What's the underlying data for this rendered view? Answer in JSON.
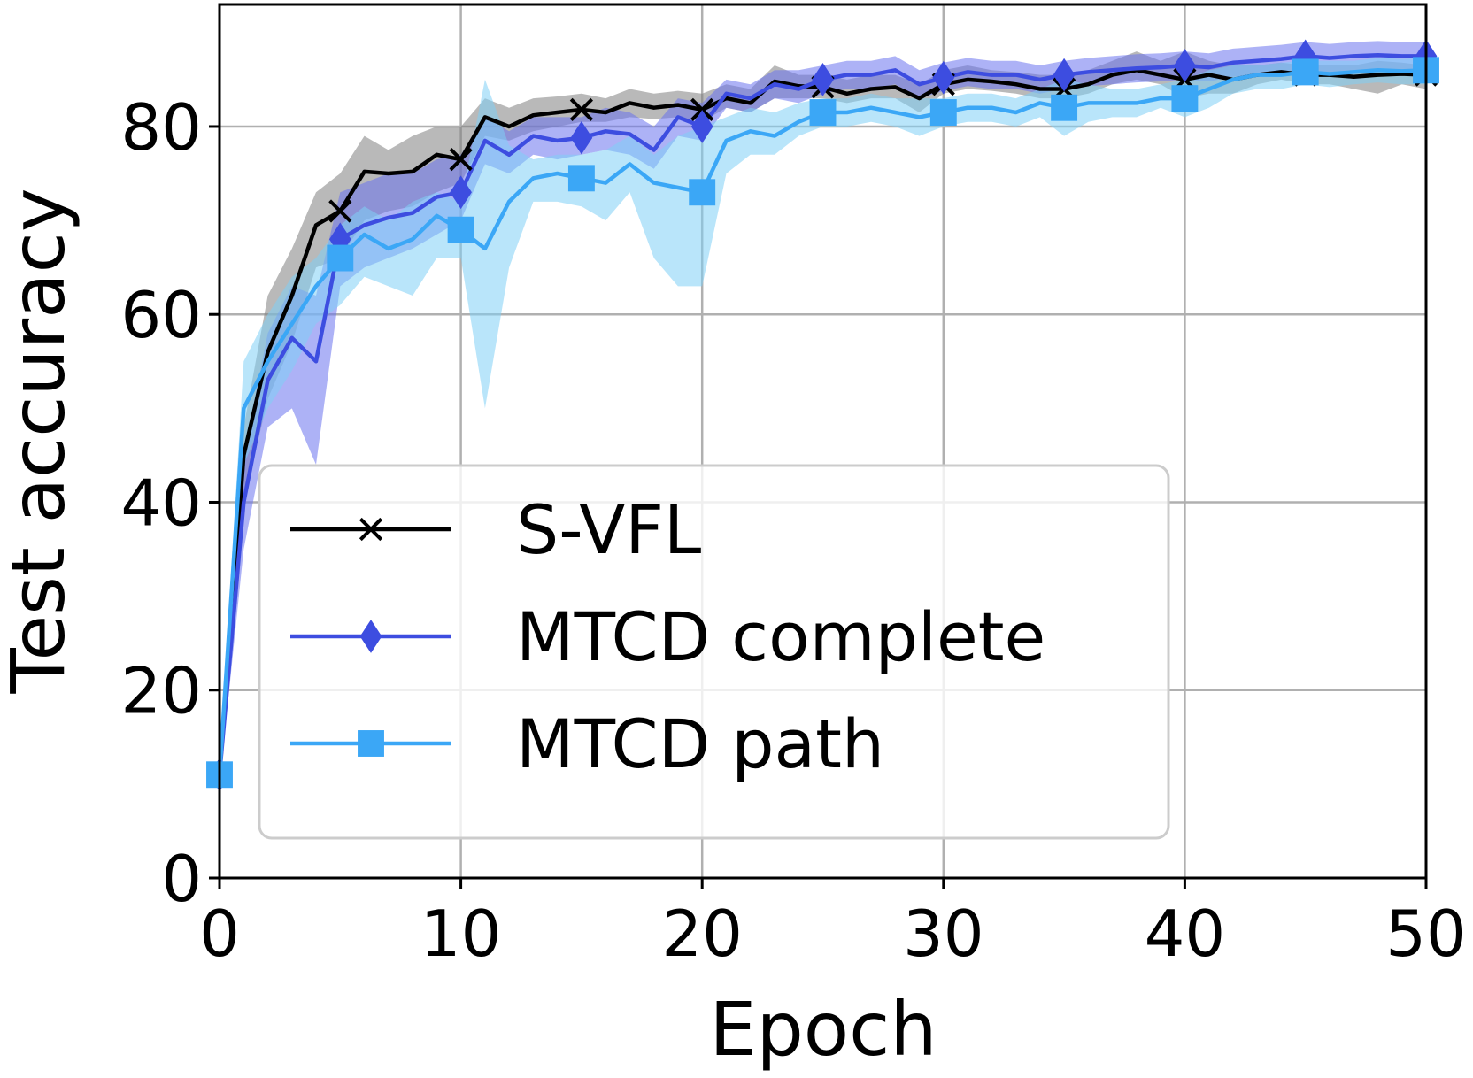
{
  "chart_data": {
    "type": "line",
    "title": "",
    "xlabel": "Epoch",
    "ylabel": "Test accuracy",
    "xlim": [
      0,
      50
    ],
    "ylim": [
      0,
      93
    ],
    "xticks": [
      0,
      10,
      20,
      30,
      40,
      50
    ],
    "yticks": [
      0,
      20,
      40,
      60,
      80
    ],
    "xtick_labels": [
      "0",
      "10",
      "20",
      "30",
      "40",
      "50"
    ],
    "ytick_labels": [
      "0",
      "20",
      "40",
      "60",
      "80"
    ],
    "grid": true,
    "legend_position": "center-left",
    "marker_every": 5,
    "series": [
      {
        "name": "S-VFL",
        "color": "#000000",
        "band_color": "#808080",
        "marker": "x",
        "x": [
          0,
          1,
          2,
          3,
          4,
          5,
          6,
          7,
          8,
          9,
          10,
          11,
          12,
          13,
          14,
          15,
          16,
          17,
          18,
          19,
          20,
          21,
          22,
          23,
          24,
          25,
          26,
          27,
          28,
          29,
          30,
          31,
          32,
          33,
          34,
          35,
          36,
          37,
          38,
          39,
          40,
          41,
          42,
          43,
          44,
          45,
          46,
          47,
          48,
          49,
          50
        ],
        "y": [
          11,
          45,
          56,
          62,
          69.5,
          71,
          75.2,
          75,
          75.2,
          77,
          76.5,
          81,
          80,
          81.2,
          81.5,
          81.8,
          81.5,
          82.5,
          82,
          82.3,
          81.8,
          83,
          82.5,
          84.8,
          84.3,
          84.2,
          83.5,
          84,
          84.2,
          83,
          84.5,
          85,
          84.8,
          84.5,
          84,
          84,
          84.5,
          85.5,
          86,
          85.5,
          85,
          85.5,
          85,
          85.5,
          85.8,
          85.5,
          85.5,
          85.3,
          85.5,
          85.6,
          85.5
        ],
        "lower": [
          10,
          40,
          51,
          57,
          65,
          66,
          70,
          71,
          71.5,
          73,
          74,
          79,
          78.5,
          79.5,
          80,
          80.5,
          80.5,
          81,
          80.8,
          81,
          80.5,
          82,
          81.5,
          83,
          83,
          83,
          82.5,
          83,
          83,
          81.5,
          83.5,
          84,
          83.8,
          83.5,
          83,
          83,
          83.5,
          84.5,
          85,
          84.5,
          83,
          83.5,
          83.5,
          84.5,
          85,
          84.5,
          84.5,
          84,
          83.5,
          84.5,
          84
        ],
        "upper": [
          12,
          48,
          62,
          67,
          73,
          75,
          79,
          77.5,
          79,
          80,
          80,
          83,
          82,
          83,
          83.2,
          83.5,
          83,
          84,
          83.5,
          83.8,
          83.5,
          84.5,
          84,
          86.5,
          85.5,
          85.5,
          85,
          85.5,
          85.5,
          84.5,
          86,
          86.5,
          86,
          85.8,
          85.5,
          85.5,
          86,
          87,
          88,
          87,
          88,
          87,
          86.5,
          86.5,
          86.8,
          86.5,
          86.5,
          86.5,
          87,
          86.8,
          86.5
        ]
      },
      {
        "name": "MTCD complete",
        "color": "#3d4de0",
        "band_color": "#6a72ee",
        "marker": "diamond",
        "x": [
          0,
          1,
          2,
          3,
          4,
          5,
          6,
          7,
          8,
          9,
          10,
          11,
          12,
          13,
          14,
          15,
          16,
          17,
          18,
          19,
          20,
          21,
          22,
          23,
          24,
          25,
          26,
          27,
          28,
          29,
          30,
          31,
          32,
          33,
          34,
          35,
          36,
          37,
          38,
          39,
          40,
          41,
          42,
          43,
          44,
          45,
          46,
          47,
          48,
          49,
          50
        ],
        "y": [
          11,
          40,
          53,
          57.5,
          55,
          68,
          69.5,
          70.3,
          70.8,
          72.5,
          73,
          78.5,
          77,
          79,
          78.5,
          78.8,
          79.5,
          79.2,
          77.5,
          81,
          80,
          83.5,
          83,
          84.5,
          84,
          85,
          85.5,
          85.5,
          86,
          84.5,
          85.2,
          85.8,
          85.5,
          85.5,
          85,
          85.5,
          85.8,
          86,
          86.2,
          86.3,
          86.5,
          86.3,
          86.8,
          87,
          87.2,
          87.5,
          87.3,
          87.5,
          87.6,
          87.5,
          87.5
        ],
        "lower": [
          10,
          35,
          48,
          50,
          44,
          63,
          65,
          66,
          67,
          68.5,
          70,
          76,
          75,
          77,
          76.5,
          77,
          77.5,
          77,
          75.5,
          79,
          78.5,
          82,
          81.5,
          83,
          82.5,
          83.5,
          84,
          84,
          84.5,
          83,
          83.8,
          84.3,
          84,
          84,
          83.5,
          84,
          84.3,
          84.5,
          84.7,
          84.8,
          85,
          84.8,
          85.3,
          85.5,
          85.7,
          86,
          85.8,
          86,
          86.1,
          86,
          86
        ],
        "upper": [
          12,
          45,
          58,
          63,
          62,
          73,
          74,
          75,
          75,
          76.5,
          77,
          81,
          79.5,
          81,
          81,
          81,
          82,
          81.5,
          80,
          83,
          82.5,
          85,
          84.5,
          86,
          86,
          86.5,
          87,
          87,
          87.5,
          86,
          86.8,
          87.3,
          87,
          87,
          86.5,
          87,
          87.3,
          87.5,
          87.7,
          87.8,
          88,
          87.8,
          88.3,
          88.5,
          88.7,
          89,
          88.8,
          89,
          89.1,
          89,
          89
        ]
      },
      {
        "name": "MTCD path",
        "color": "#3ba7f6",
        "band_color": "#7fd0f5",
        "marker": "square",
        "x": [
          0,
          1,
          2,
          3,
          4,
          5,
          6,
          7,
          8,
          9,
          10,
          11,
          12,
          13,
          14,
          15,
          16,
          17,
          18,
          19,
          20,
          21,
          22,
          23,
          24,
          25,
          26,
          27,
          28,
          29,
          30,
          31,
          32,
          33,
          34,
          35,
          36,
          37,
          38,
          39,
          40,
          41,
          42,
          43,
          44,
          45,
          46,
          47,
          48,
          49,
          50
        ],
        "y": [
          11,
          50,
          55,
          59,
          63,
          66,
          68.5,
          67,
          68,
          70.5,
          69,
          67,
          72,
          74.5,
          75,
          74.5,
          74,
          76,
          74,
          73.5,
          73,
          78.5,
          79.5,
          79,
          80.5,
          81.5,
          81.5,
          82,
          81.5,
          81,
          81.5,
          82,
          82,
          81.5,
          82.5,
          82,
          82.5,
          82.5,
          82.5,
          83,
          83,
          84,
          85,
          85.5,
          85.5,
          85.8,
          85.6,
          85.8,
          86,
          85.9,
          86
        ],
        "lower": [
          10,
          44,
          50,
          54,
          59,
          61,
          64,
          63,
          62,
          66,
          66,
          50,
          65,
          72,
          72,
          71.5,
          70,
          73,
          66,
          63,
          63,
          75,
          77,
          77,
          79,
          80,
          80,
          80.5,
          80,
          79,
          80,
          80.5,
          80.5,
          80,
          81,
          79,
          80.5,
          81,
          81,
          82,
          81,
          82,
          83.5,
          84,
          84,
          84.5,
          84.2,
          84.5,
          84.7,
          84.5,
          84.5
        ],
        "upper": [
          12,
          55,
          60,
          64,
          66,
          69.5,
          71.5,
          70,
          72,
          73,
          72,
          85,
          78,
          76.5,
          77,
          77,
          77.5,
          79,
          77,
          79,
          80,
          81,
          82,
          81.5,
          82.5,
          83,
          83,
          83.5,
          83,
          83,
          83,
          83.5,
          83.5,
          83,
          84,
          85,
          84.5,
          84,
          84,
          84.5,
          85,
          86,
          86.5,
          86.5,
          86.8,
          87,
          87,
          87,
          87.3,
          87.2,
          87.3
        ]
      }
    ]
  }
}
